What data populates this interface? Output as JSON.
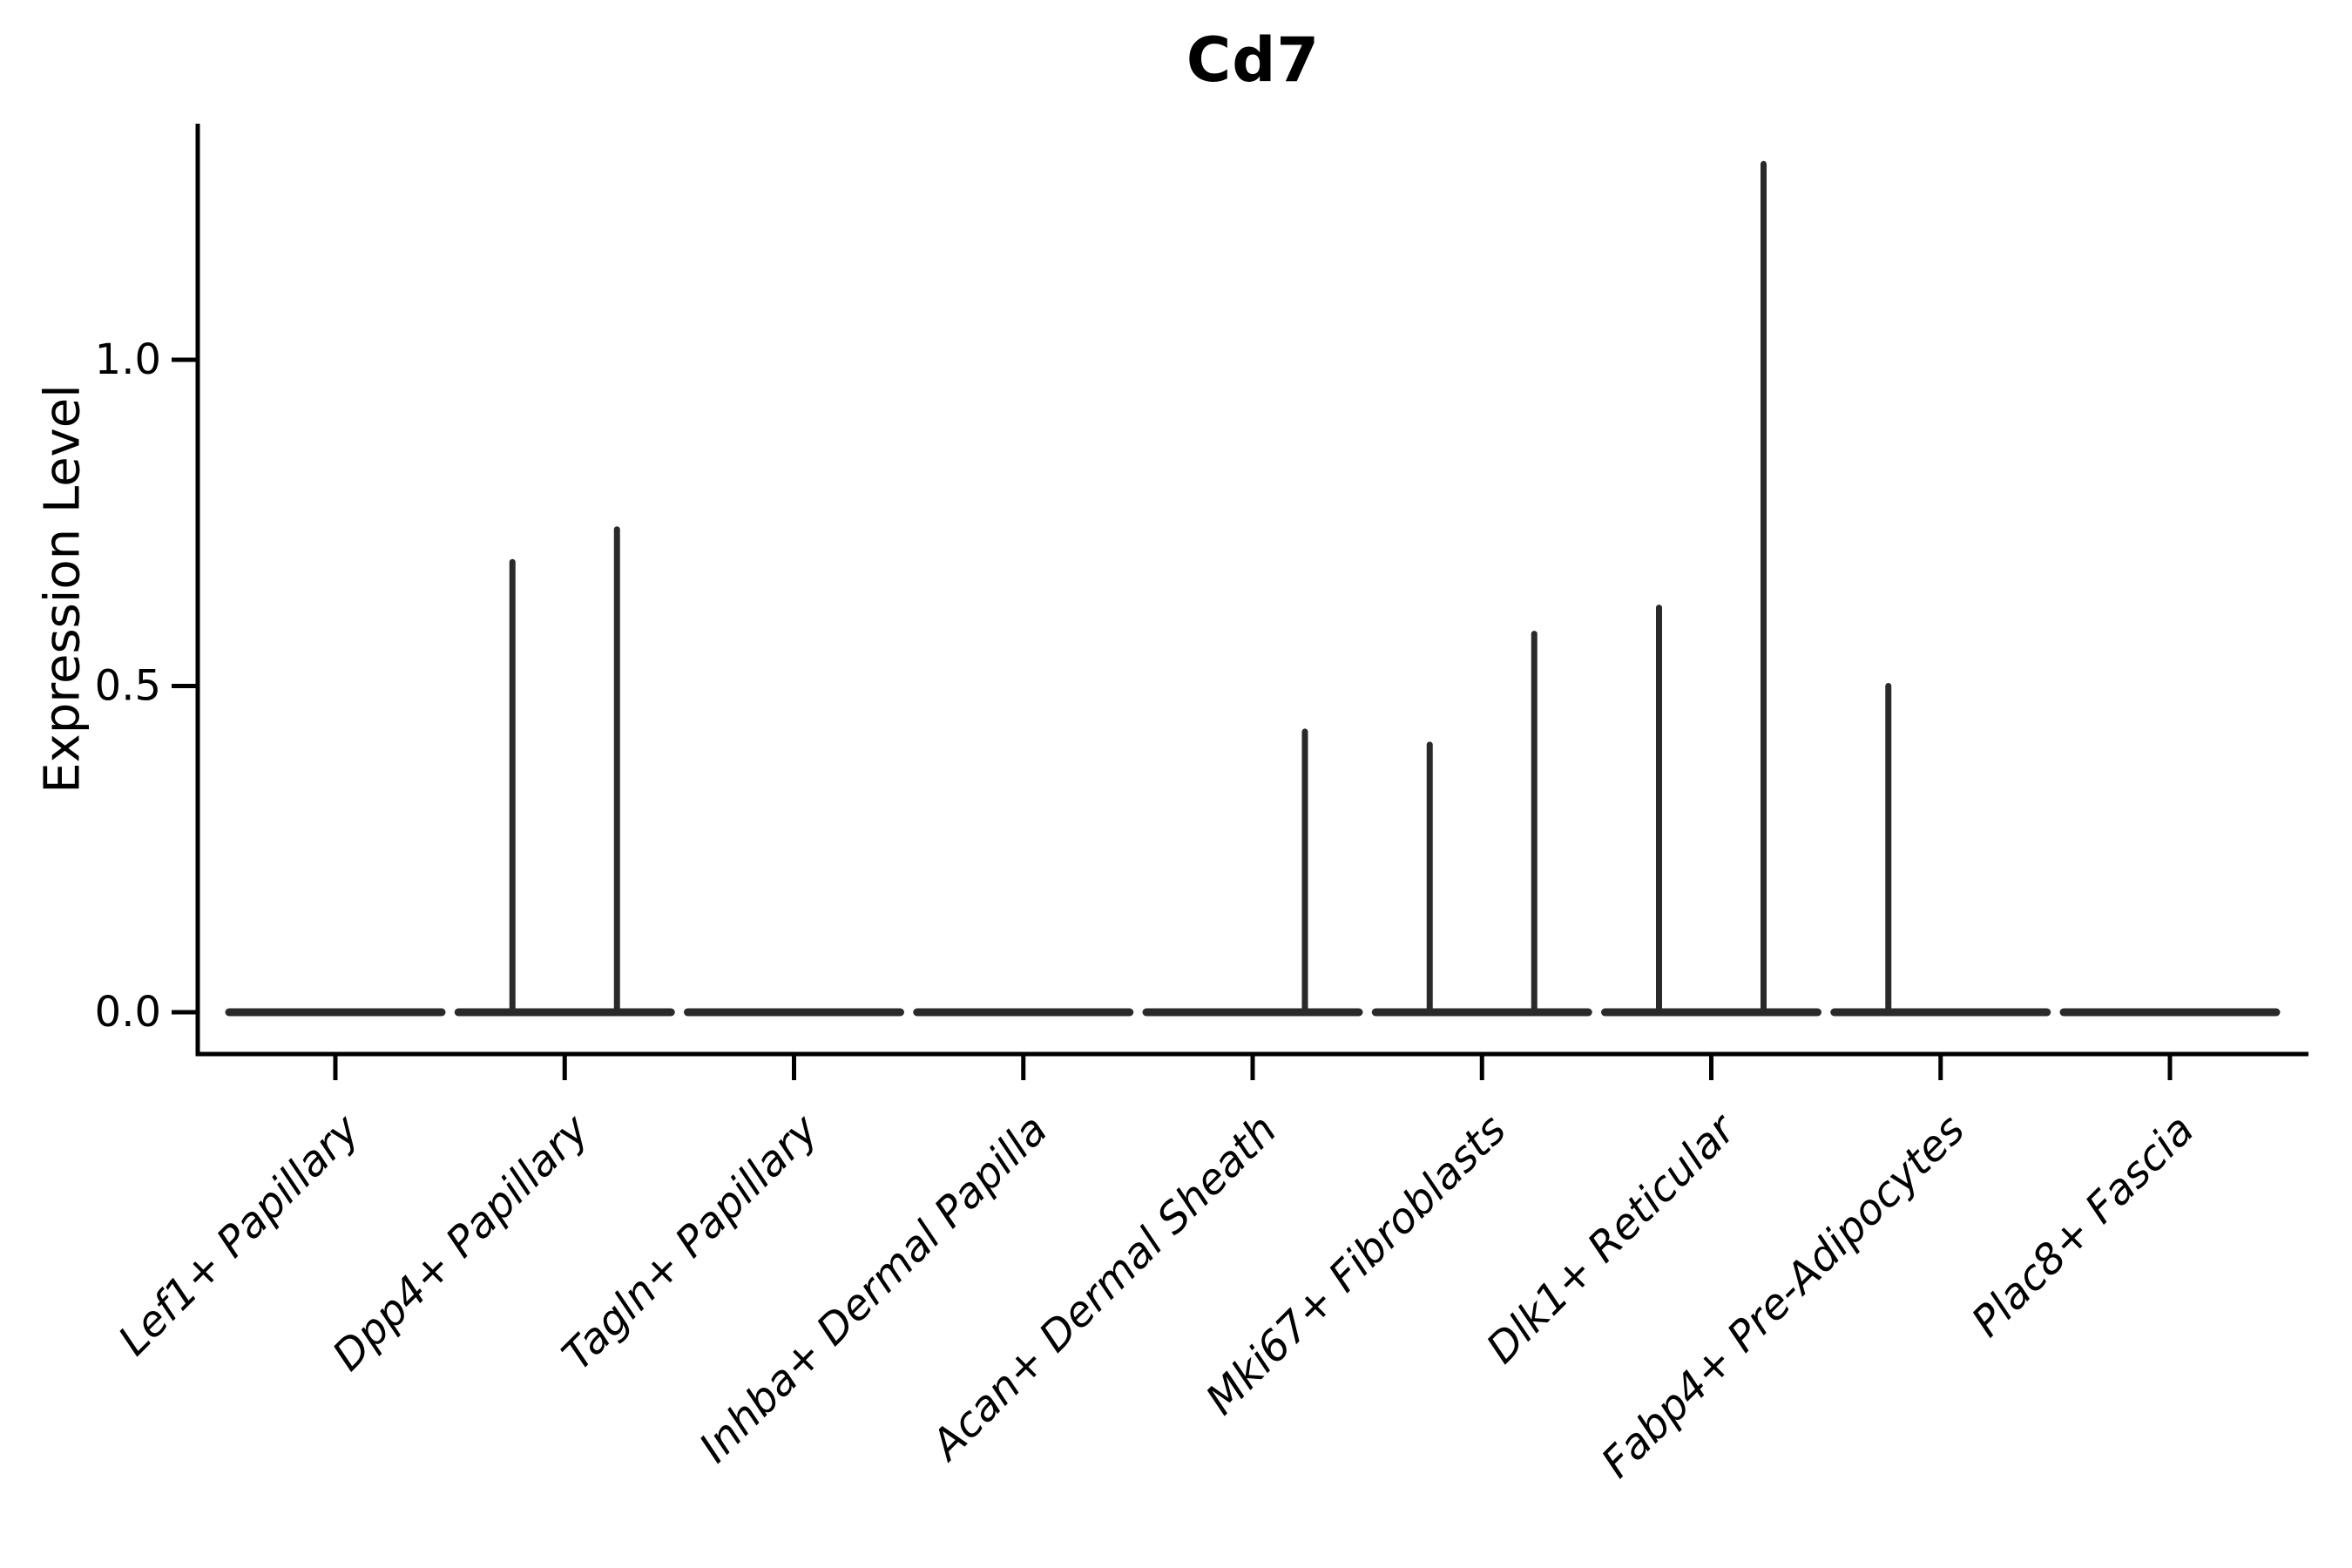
{
  "title": "Cd7",
  "y_axis_label": "Expression Level",
  "chart_data": {
    "type": "violin",
    "title": "Cd7",
    "xlabel": "",
    "ylabel": "Expression Level",
    "y_ticks": [
      0.0,
      0.5,
      1.0
    ],
    "y_tick_labels": [
      "0.0",
      "0.5",
      "1.0"
    ],
    "ylim": [
      -0.06,
      1.36
    ],
    "grid": false,
    "legend": "none",
    "axis_color": "#000000",
    "violin_color": "#2a2a2a",
    "categories": [
      "Lef1+ Papillary",
      "Dpp4+ Papillary",
      "Tagln+ Papillary",
      "Inhba+ Dermal Papilla",
      "Acan+ Dermal Sheath",
      "Mki67+ Fibroblasts",
      "Dlk1+ Reticular",
      "Fabp4+ Pre-Adipocytes",
      "Plac8+ Fascia"
    ],
    "series": [
      {
        "category": "Lef1+ Papillary",
        "baseline_value": 0.0,
        "spikes": []
      },
      {
        "category": "Dpp4+ Papillary",
        "baseline_value": 0.0,
        "spikes": [
          {
            "position": "left",
            "max_expression": 0.69
          },
          {
            "position": "right",
            "max_expression": 0.74
          }
        ]
      },
      {
        "category": "Tagln+ Papillary",
        "baseline_value": 0.0,
        "spikes": []
      },
      {
        "category": "Inhba+ Dermal Papilla",
        "baseline_value": 0.0,
        "spikes": []
      },
      {
        "category": "Acan+ Dermal Sheath",
        "baseline_value": 0.0,
        "spikes": [
          {
            "position": "right",
            "max_expression": 0.43
          }
        ]
      },
      {
        "category": "Mki67+ Fibroblasts",
        "baseline_value": 0.0,
        "spikes": [
          {
            "position": "left",
            "max_expression": 0.41
          },
          {
            "position": "right",
            "max_expression": 0.58
          }
        ]
      },
      {
        "category": "Dlk1+ Reticular",
        "baseline_value": 0.0,
        "spikes": [
          {
            "position": "left",
            "max_expression": 0.62
          },
          {
            "position": "right",
            "max_expression": 1.3
          }
        ]
      },
      {
        "category": "Fabp4+ Pre-Adipocytes",
        "baseline_value": 0.0,
        "spikes": [
          {
            "position": "left",
            "max_expression": 0.5
          }
        ]
      },
      {
        "category": "Plac8+ Fascia",
        "baseline_value": 0.0,
        "spikes": []
      }
    ]
  }
}
